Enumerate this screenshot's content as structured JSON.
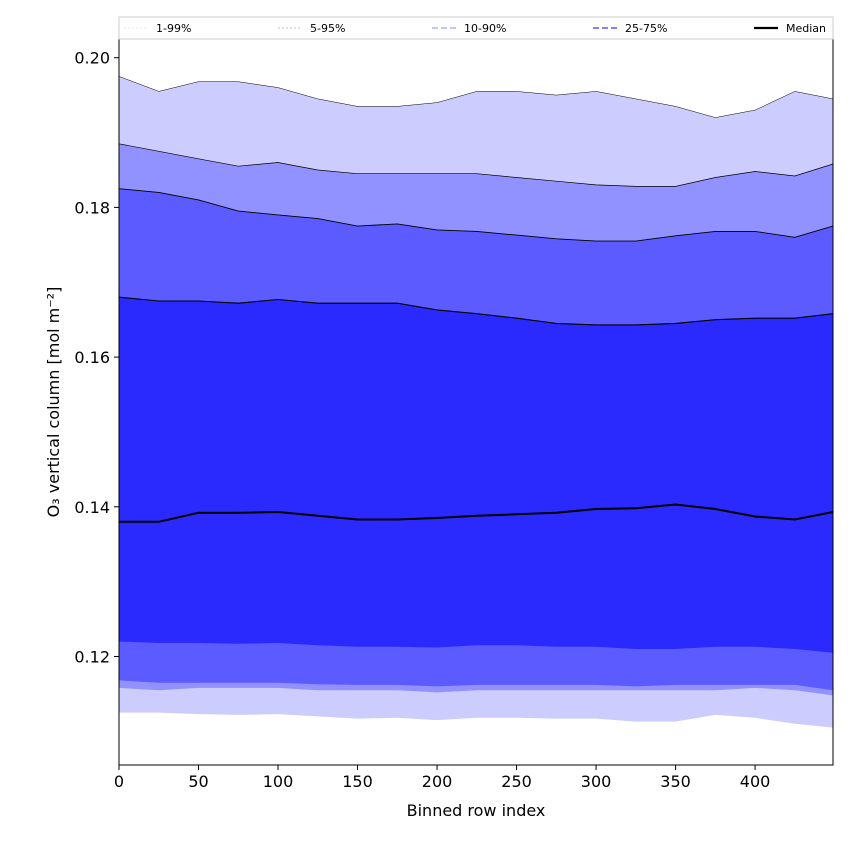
{
  "chart_data": {
    "type": "area",
    "xlabel": "Binned row index",
    "ylabel": "O₃ vertical column [mol m⁻²]",
    "xlim": [
      0,
      449
    ],
    "ylim": [
      0.1055,
      0.2025
    ],
    "xticks": [
      0,
      50,
      100,
      150,
      200,
      250,
      300,
      350,
      400
    ],
    "xtick_labels": [
      "0",
      "50",
      "100",
      "150",
      "200",
      "250",
      "300",
      "350",
      "400"
    ],
    "yticks": [
      0.12,
      0.14,
      0.16,
      0.18,
      0.2
    ],
    "ytick_labels": [
      "0.12",
      "0.14",
      "0.16",
      "0.18",
      "0.20"
    ],
    "grid": false,
    "legend_position": "top",
    "x": [
      0,
      25,
      50,
      75,
      100,
      125,
      150,
      175,
      200,
      225,
      250,
      275,
      300,
      325,
      350,
      375,
      400,
      425,
      449
    ],
    "bands": [
      {
        "name": "1-99%",
        "color": "#ccccff",
        "upper": [
          0.1975,
          0.1955,
          0.1968,
          0.1968,
          0.196,
          0.1945,
          0.1935,
          0.1935,
          0.194,
          0.1955,
          0.1955,
          0.195,
          0.1955,
          0.1945,
          0.1935,
          0.192,
          0.193,
          0.1955,
          0.1945
        ],
        "lower": [
          0.1125,
          0.1125,
          0.1123,
          0.1122,
          0.1123,
          0.112,
          0.1117,
          0.1118,
          0.1115,
          0.1118,
          0.1118,
          0.1117,
          0.1117,
          0.1113,
          0.1113,
          0.1122,
          0.1118,
          0.111,
          0.1105
        ]
      },
      {
        "name": "5-95%",
        "color": "#9191ff",
        "upper": [
          0.1885,
          0.1875,
          0.1865,
          0.1855,
          0.186,
          0.185,
          0.1845,
          0.1845,
          0.1845,
          0.1845,
          0.184,
          0.1835,
          0.183,
          0.1828,
          0.1828,
          0.184,
          0.1848,
          0.1842,
          0.1858
        ],
        "lower": [
          0.1158,
          0.1155,
          0.1158,
          0.1158,
          0.1158,
          0.1155,
          0.1155,
          0.1155,
          0.1152,
          0.1155,
          0.1155,
          0.1155,
          0.1155,
          0.1155,
          0.1155,
          0.1155,
          0.1158,
          0.1155,
          0.1148
        ]
      },
      {
        "name": "10-90%",
        "color": "#5b5bff",
        "upper": [
          0.1825,
          0.182,
          0.181,
          0.1795,
          0.179,
          0.1785,
          0.1775,
          0.1778,
          0.177,
          0.1768,
          0.1763,
          0.1758,
          0.1755,
          0.1755,
          0.1762,
          0.1768,
          0.1768,
          0.176,
          0.1775
        ],
        "lower": [
          0.1168,
          0.1165,
          0.1165,
          0.1165,
          0.1165,
          0.1163,
          0.1162,
          0.1162,
          0.116,
          0.1162,
          0.1162,
          0.1162,
          0.1162,
          0.116,
          0.1162,
          0.1162,
          0.1162,
          0.1162,
          0.1155
        ]
      },
      {
        "name": "25-75%",
        "color": "#2a2aff",
        "upper": [
          0.168,
          0.1675,
          0.1675,
          0.1672,
          0.1677,
          0.1672,
          0.1672,
          0.1672,
          0.1663,
          0.1658,
          0.1652,
          0.1645,
          0.1643,
          0.1643,
          0.1645,
          0.165,
          0.1652,
          0.1652,
          0.1658
        ],
        "lower": [
          0.122,
          0.1218,
          0.1218,
          0.1217,
          0.1218,
          0.1215,
          0.1213,
          0.1213,
          0.1212,
          0.1215,
          0.1215,
          0.1213,
          0.1213,
          0.121,
          0.121,
          0.1213,
          0.1213,
          0.121,
          0.1205
        ]
      }
    ],
    "median": {
      "name": "Median",
      "color": "#000000",
      "values": [
        0.138,
        0.138,
        0.1392,
        0.1392,
        0.1393,
        0.1388,
        0.1383,
        0.1383,
        0.1385,
        0.1388,
        0.139,
        0.1392,
        0.1397,
        0.1398,
        0.1403,
        0.1397,
        0.1387,
        0.1383,
        0.1393
      ]
    },
    "legend": [
      {
        "label": "1-99%",
        "color": "#cccccf",
        "dash": "2,2",
        "width": 0.6
      },
      {
        "label": "5-95%",
        "color": "#9a9aff",
        "dash": "2,2",
        "width": 0.8
      },
      {
        "label": "10-90%",
        "color": "#8a8aff",
        "dash": "6,3",
        "width": 1.0
      },
      {
        "label": "25-75%",
        "color": "#5a5aff",
        "dash": "6,3",
        "width": 1.4
      },
      {
        "label": "Median",
        "color": "#000000",
        "dash": "",
        "width": 2.2
      }
    ]
  }
}
